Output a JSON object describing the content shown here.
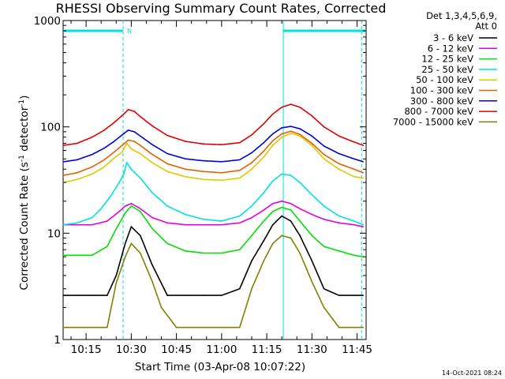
{
  "chart_data": {
    "type": "line",
    "title": "RHESSI Observing Summary Count Rates, Corrected",
    "xlabel": "Start Time (03-Apr-08 10:07:22)",
    "ylabel": "Corrected Count Rate (s",
    "ylabel_sup1": "-1",
    "ylabel_mid": " detector",
    "ylabel_sup2": "-1",
    "ylabel_end": ")",
    "x_scale": "time",
    "x_unit": "minutes of day (UT, 03-Apr-08)",
    "xlim": [
      607.37,
      708.0
    ],
    "x_ticks": [
      {
        "value": 615,
        "label": "10:15"
      },
      {
        "value": 630,
        "label": "10:30"
      },
      {
        "value": 645,
        "label": "10:45"
      },
      {
        "value": 660,
        "label": "11:00"
      },
      {
        "value": 675,
        "label": "11:15"
      },
      {
        "value": 690,
        "label": "11:30"
      },
      {
        "value": 705,
        "label": "11:45"
      }
    ],
    "y_scale": "log",
    "ylim": [
      1,
      1000
    ],
    "y_ticks": [
      {
        "value": 1,
        "label": "1"
      },
      {
        "value": 10,
        "label": "10"
      },
      {
        "value": 100,
        "label": "100"
      },
      {
        "value": 1000,
        "label": "1000"
      }
    ],
    "grid": false,
    "legend_header": [
      "Det 1,3,4,5,6,9,",
      "Att 0"
    ],
    "legend_position": "right, outside",
    "series": [
      {
        "name": "3 - 6 keV",
        "color": "#000000",
        "x": [
          607.5,
          612,
          617,
          622,
          625,
          628,
          630,
          633,
          637,
          642,
          648,
          654,
          660,
          666,
          670,
          674,
          677,
          680,
          683,
          686,
          690,
          694,
          699,
          704,
          707
        ],
        "y": [
          2.6,
          2.6,
          2.6,
          2.6,
          4,
          8,
          11.5,
          9.5,
          5,
          2.6,
          2.6,
          2.6,
          2.6,
          3,
          5.5,
          8.5,
          12,
          14.5,
          13,
          9.5,
          5.5,
          3,
          2.6,
          2.6,
          2.6
        ]
      },
      {
        "name": "6 - 12 keV",
        "color": "#e000e0",
        "x": [
          607.5,
          612,
          617,
          622,
          626,
          628,
          630,
          633,
          637,
          642,
          648,
          654,
          660,
          666,
          670,
          674,
          677,
          680,
          683,
          686,
          690,
          694,
          699,
          704,
          707
        ],
        "y": [
          12,
          12,
          12,
          13,
          16,
          18,
          19,
          17,
          14,
          12.5,
          12,
          12,
          12,
          12.5,
          14,
          16.5,
          19,
          20,
          19,
          17,
          15,
          13.5,
          12.5,
          12,
          11.5
        ]
      },
      {
        "name": "12 - 25 keV",
        "color": "#00e000",
        "x": [
          607.5,
          612,
          617,
          622,
          625,
          628,
          630,
          633,
          637,
          642,
          648,
          654,
          660,
          666,
          670,
          674,
          677,
          680,
          683,
          686,
          690,
          694,
          699,
          704,
          707
        ],
        "y": [
          6.2,
          6.2,
          6.2,
          7.5,
          11,
          15.5,
          18,
          16,
          11,
          8,
          6.8,
          6.5,
          6.5,
          7,
          9.5,
          13,
          16,
          17.5,
          16.5,
          13,
          9.5,
          7.5,
          6.8,
          6.2,
          6
        ]
      },
      {
        "name": "25 - 50 keV",
        "color": "#00e0e0",
        "x": [
          607.5,
          612,
          617,
          620,
          623,
          626,
          627.5,
          628.5,
          630,
          633,
          637,
          642,
          648,
          654,
          660,
          666,
          670,
          674,
          677,
          680,
          683,
          686,
          690,
          694,
          699,
          704,
          707
        ],
        "y": [
          12,
          12.5,
          14,
          17,
          22,
          30,
          36,
          46,
          40,
          33,
          24,
          18,
          15,
          13.5,
          13,
          14.5,
          18,
          24,
          31,
          36,
          35,
          30,
          23,
          18,
          14.5,
          13,
          12
        ]
      },
      {
        "name": "50 - 100 keV",
        "color": "#e0c800",
        "x": [
          607.5,
          612,
          617,
          621,
          624,
          627,
          628.5,
          630,
          633,
          637,
          642,
          648,
          654,
          660,
          666,
          670,
          674,
          677,
          680,
          683,
          686,
          690,
          694,
          699,
          704,
          707
        ],
        "y": [
          30,
          32,
          36,
          42,
          50,
          58,
          70,
          62,
          56,
          46,
          38,
          34,
          32,
          31.5,
          33,
          40,
          52,
          67,
          80,
          87,
          82,
          67,
          50,
          40,
          34,
          33
        ]
      },
      {
        "name": "100 - 300 keV",
        "color": "#e06000",
        "x": [
          607.5,
          612,
          617,
          621,
          624,
          627,
          629,
          631,
          633,
          637,
          642,
          648,
          654,
          660,
          666,
          670,
          674,
          677,
          680,
          683,
          686,
          690,
          694,
          699,
          704,
          707
        ],
        "y": [
          35,
          37,
          42,
          49,
          57,
          67,
          75,
          73,
          67,
          55,
          45,
          40,
          38,
          37,
          39,
          46,
          59,
          74,
          86,
          91,
          85,
          70,
          55,
          45,
          40,
          37
        ]
      },
      {
        "name": "300 - 800 keV",
        "color": "#0000e0",
        "x": [
          607.5,
          612,
          617,
          621,
          624,
          627,
          629,
          631,
          633,
          637,
          642,
          648,
          654,
          660,
          666,
          670,
          674,
          677,
          680,
          683,
          686,
          690,
          694,
          699,
          704,
          707
        ],
        "y": [
          47,
          49,
          55,
          63,
          72,
          84,
          93,
          90,
          82,
          68,
          56,
          50,
          48,
          47,
          49,
          57,
          71,
          86,
          98,
          101,
          96,
          82,
          66,
          56,
          50,
          47
        ]
      },
      {
        "name": "800 - 7000 keV",
        "color": "#e00000",
        "x": [
          607.5,
          612,
          617,
          621,
          624,
          627,
          629,
          631,
          633,
          637,
          642,
          648,
          654,
          660,
          666,
          670,
          674,
          677,
          680,
          683,
          686,
          690,
          694,
          699,
          704,
          707
        ],
        "y": [
          67,
          70,
          80,
          93,
          108,
          128,
          145,
          140,
          125,
          102,
          83,
          73,
          69,
          68,
          71,
          84,
          107,
          132,
          153,
          163,
          153,
          127,
          100,
          82,
          72,
          67
        ]
      },
      {
        "name": "7000 - 15000 keV",
        "color": "#808000",
        "x": [
          607.5,
          612,
          617,
          622,
          625,
          628,
          630,
          633,
          637,
          640,
          645,
          650,
          655,
          660,
          666,
          670,
          674,
          677,
          680,
          683,
          686,
          690,
          694,
          699,
          704,
          707
        ],
        "y": [
          1.3,
          1.3,
          1.3,
          1.3,
          3.4,
          6,
          8,
          6.5,
          3.5,
          2,
          1.3,
          1.3,
          1.3,
          1.3,
          1.3,
          3,
          5.5,
          8,
          9.5,
          9,
          6.5,
          3.5,
          2,
          1.3,
          1.3,
          1.3
        ]
      }
    ],
    "attenuator_flag": {
      "color": "#00e0e0",
      "level": 800,
      "label": "N",
      "segments": [
        [
          607.37,
          627.3
        ],
        [
          680.5,
          708.0
        ]
      ],
      "boundaries": [
        {
          "x": 627.3,
          "style": "dashed"
        },
        {
          "x": 680.5,
          "style": "solid"
        },
        {
          "x": 706.5,
          "style": "dashed"
        }
      ]
    }
  },
  "timestamp": "14-Oct-2021 08:24"
}
